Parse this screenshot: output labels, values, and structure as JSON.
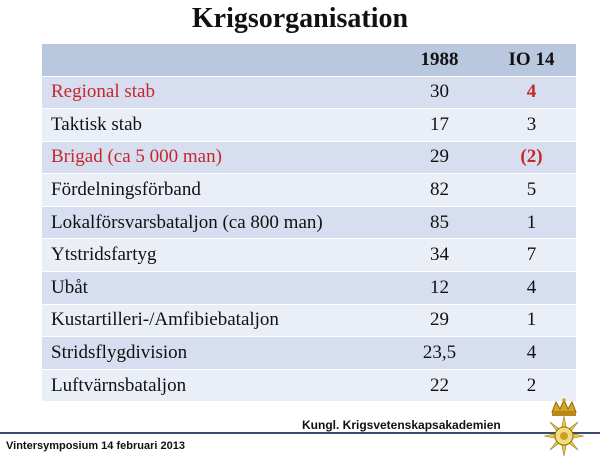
{
  "title": "Krigsorganisation",
  "table": {
    "headers": [
      "",
      "1988",
      "IO 14"
    ],
    "rows": [
      {
        "label": "Regional stab",
        "v1988": "30",
        "io14": "4",
        "highlight": true
      },
      {
        "label": "Taktisk stab",
        "v1988": "17",
        "io14": "3",
        "highlight": false
      },
      {
        "label": "Brigad (ca 5 000 man)",
        "v1988": "29",
        "io14": "(2)",
        "highlight": true
      },
      {
        "label": "Fördelningsförband",
        "v1988": "82",
        "io14": "5",
        "highlight": false
      },
      {
        "label": "Lokalförsvarsbataljon (ca 800 man)",
        "v1988": "85",
        "io14": "1",
        "highlight": false
      },
      {
        "label": "Ytstridsfartyg",
        "v1988": "34",
        "io14": "7",
        "highlight": false
      },
      {
        "label": "Ubåt",
        "v1988": "12",
        "io14": "4",
        "highlight": false
      },
      {
        "label": "Kustartilleri-/Amfibiebataljon",
        "v1988": "29",
        "io14": "1",
        "highlight": false
      },
      {
        "label": "Stridsflygdivision",
        "v1988": "23,5",
        "io14": "4",
        "highlight": false
      },
      {
        "label": "Luftvärnsbataljon",
        "v1988": "22",
        "io14": "2",
        "highlight": false
      }
    ]
  },
  "footer": {
    "left": "Vintersymposium 14 februari 2013",
    "right": "Kungl. Krigsvetenskapsakademien"
  },
  "colors": {
    "highlight_text": "#c62828",
    "header_bg": "#b9c8df",
    "row_odd_bg": "#d6def0",
    "row_even_bg": "#eaeef7"
  },
  "icons": {
    "emblem": "crowned-seal-icon"
  }
}
